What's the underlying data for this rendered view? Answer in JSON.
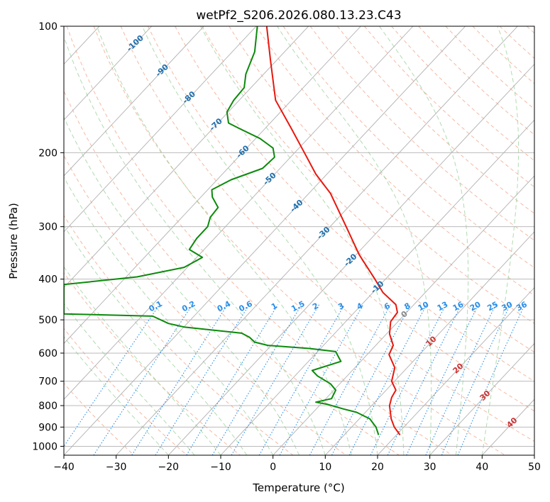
{
  "chart_data": {
    "type": "line",
    "title": "wetPf2_S206.2026.080.13.23.C43",
    "xlabel": "Temperature (°C)",
    "ylabel": "Pressure (hPa)",
    "xlim": [
      -40,
      50
    ],
    "ylim": [
      1050,
      100
    ],
    "y_scale": "log",
    "grid": true,
    "x_ticks": [
      -40,
      -30,
      -20,
      -10,
      0,
      10,
      20,
      30,
      40,
      50
    ],
    "x_tick_labels": [
      "−40",
      "−30",
      "−20",
      "−10",
      "0",
      "10",
      "20",
      "30",
      "40",
      "50"
    ],
    "y_ticks": [
      100,
      200,
      300,
      400,
      500,
      600,
      700,
      800,
      900,
      1000
    ],
    "y_tick_labels": [
      "100",
      "200",
      "300",
      "400",
      "500",
      "600",
      "700",
      "800",
      "900",
      "1000"
    ],
    "series": [
      {
        "color": "#e8170e",
        "points": [
          [
            -1.2,
            100
          ],
          [
            -0.5,
            120
          ],
          [
            0.5,
            150
          ],
          [
            3.5,
            175
          ],
          [
            6,
            200
          ],
          [
            8.2,
            225
          ],
          [
            11,
            250
          ],
          [
            14,
            300
          ],
          [
            16.5,
            350
          ],
          [
            19.5,
            400
          ],
          [
            21,
            430
          ],
          [
            23.5,
            460
          ],
          [
            23.8,
            480
          ],
          [
            22.5,
            505
          ],
          [
            22.3,
            540
          ],
          [
            23,
            575
          ],
          [
            22.2,
            605
          ],
          [
            23.3,
            650
          ],
          [
            22.7,
            700
          ],
          [
            23.5,
            735
          ],
          [
            22.7,
            765
          ],
          [
            22.3,
            800
          ],
          [
            22.6,
            860
          ],
          [
            23.2,
            900
          ],
          [
            24.3,
            940
          ]
        ]
      },
      {
        "color": "#0c8a0c",
        "points": [
          [
            -3,
            100
          ],
          [
            -3.5,
            115
          ],
          [
            -5.2,
            130
          ],
          [
            -5.5,
            140
          ],
          [
            -7.5,
            150
          ],
          [
            -8.8,
            160
          ],
          [
            -8.5,
            170
          ],
          [
            -6.5,
            175
          ],
          [
            -2.5,
            185
          ],
          [
            0,
            195
          ],
          [
            0.3,
            205
          ],
          [
            -2,
            218
          ],
          [
            -8,
            232
          ],
          [
            -11.7,
            245
          ],
          [
            -11.6,
            255
          ],
          [
            -10.5,
            270
          ],
          [
            -12,
            285
          ],
          [
            -12.5,
            300
          ],
          [
            -14.6,
            320
          ],
          [
            -16,
            340
          ],
          [
            -13.5,
            355
          ],
          [
            -17,
            375
          ],
          [
            -26,
            395
          ],
          [
            -40,
            412
          ],
          [
            -40,
            484
          ],
          [
            -23,
            490
          ],
          [
            -20,
            510
          ],
          [
            -17,
            520
          ],
          [
            -6,
            538
          ],
          [
            -4.5,
            550
          ],
          [
            -3.5,
            565
          ],
          [
            -1,
            575
          ],
          [
            7,
            585
          ],
          [
            12,
            595
          ],
          [
            12.5,
            612
          ],
          [
            13,
            628
          ],
          [
            7.5,
            660
          ],
          [
            8.5,
            680
          ],
          [
            11,
            710
          ],
          [
            12,
            735
          ],
          [
            11.2,
            770
          ],
          [
            8.2,
            785
          ],
          [
            10.5,
            795
          ],
          [
            13.5,
            815
          ],
          [
            16,
            830
          ],
          [
            18.5,
            860
          ],
          [
            19.7,
            900
          ],
          [
            20.2,
            940
          ]
        ]
      }
    ],
    "isotherm_labels": [
      "-100",
      "-90",
      "-80",
      "-70",
      "-60",
      "-50",
      "-40",
      "-30",
      "-20",
      "-10",
      "0",
      "10",
      "20",
      "30",
      "40"
    ],
    "mixing_ratio_labels": [
      "0.1",
      "0.2",
      "0.4",
      "0.6",
      "1",
      "1.5",
      "2",
      "3",
      "4",
      "6",
      "8",
      "10",
      "13",
      "16",
      "20",
      "25",
      "30",
      "36"
    ]
  },
  "colors": {
    "isotherm_neg": "#1f6fae",
    "isotherm_pos": "#cc3333",
    "isotherm_zero": "#888888",
    "mixing_ratio": "#2a8ee8",
    "dry_adiabat": "#f2a78c",
    "moist_adiabat": "#8fcc8f",
    "skewed_grid": "#b0b0b0",
    "temperature_line": "#e8170e",
    "dewpoint_line": "#0c8a0c"
  }
}
